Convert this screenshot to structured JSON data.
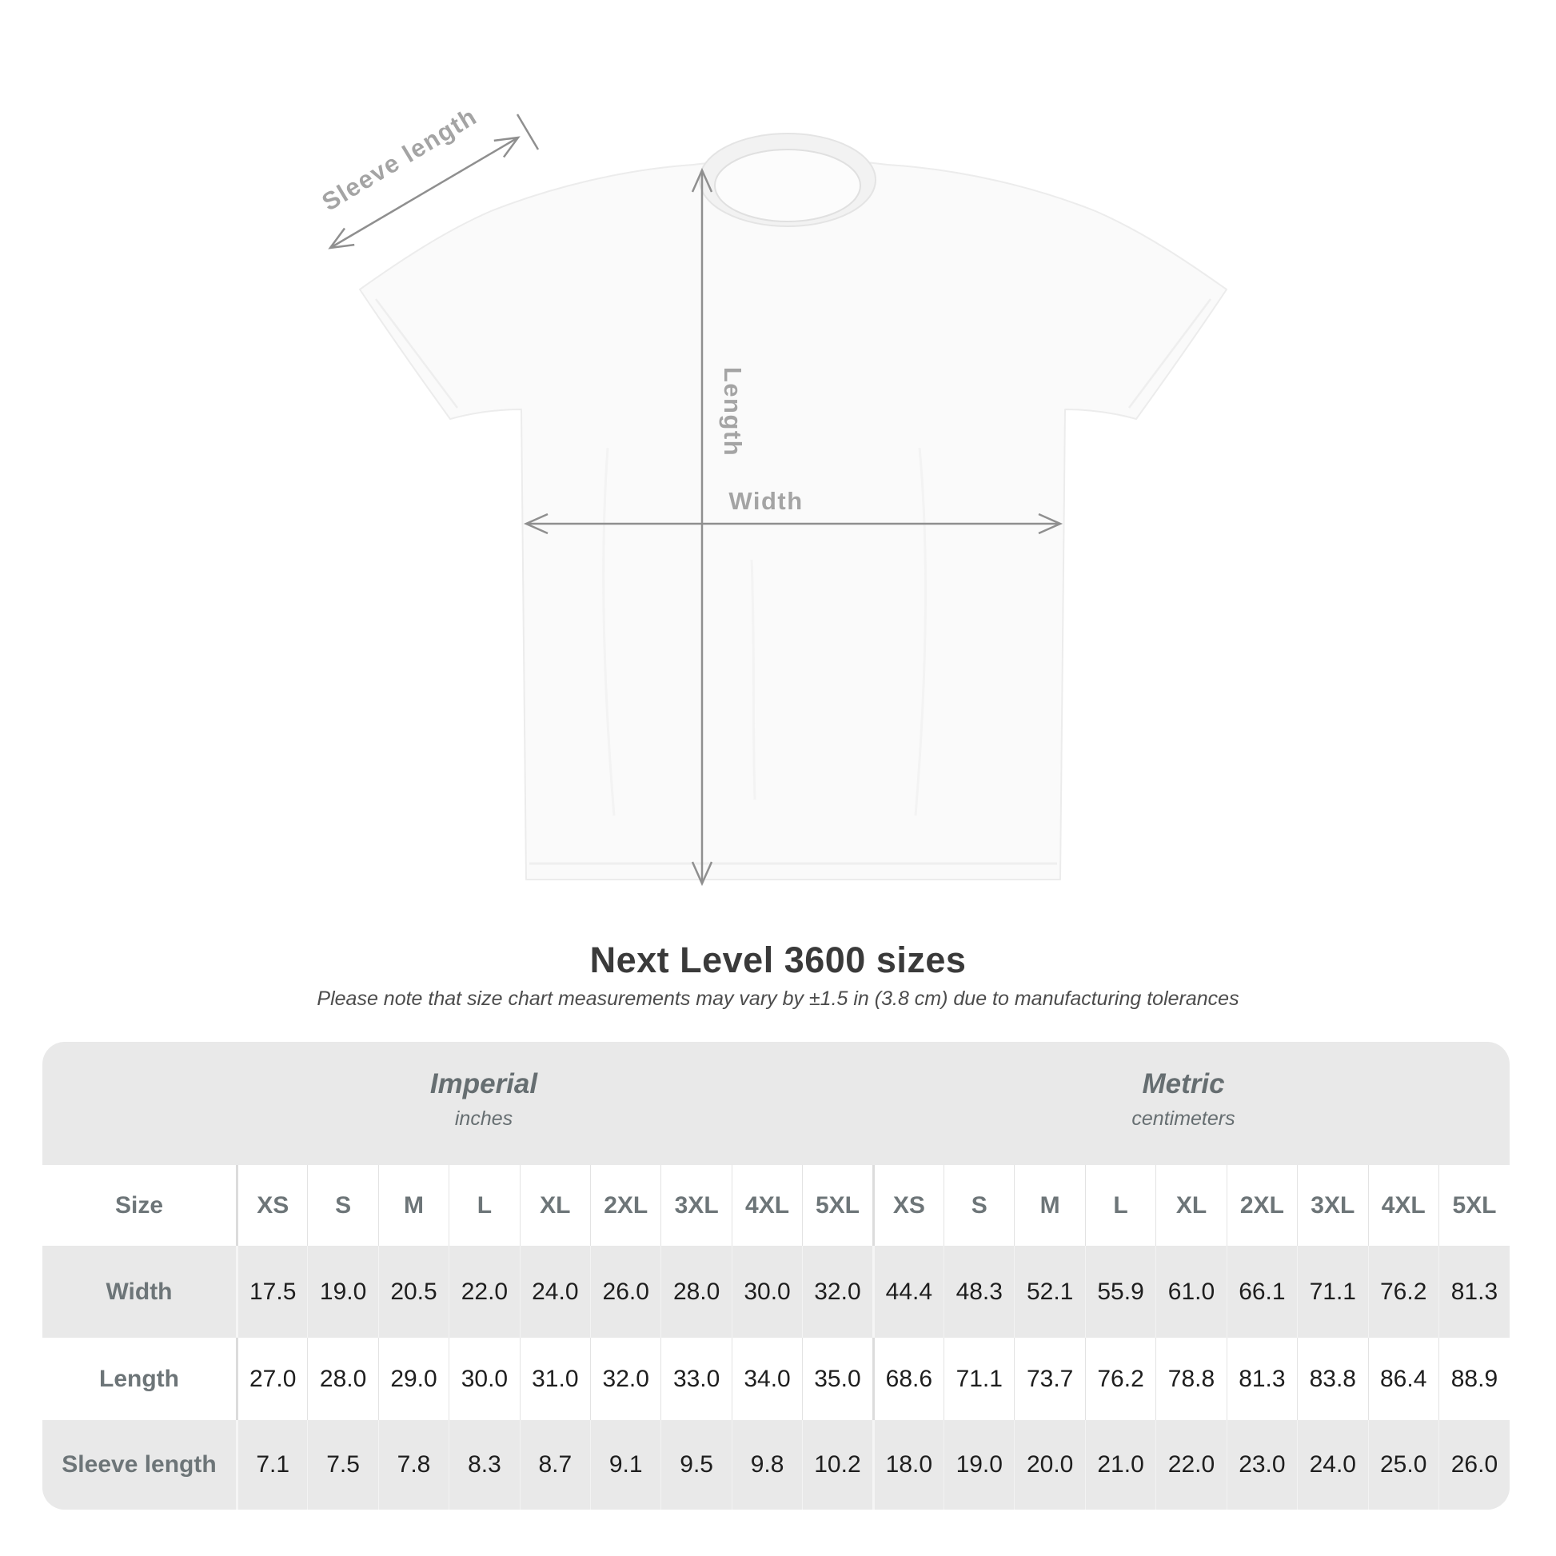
{
  "heading": {
    "note": "Please note that size chart measurements may vary by ±1.5 in (3.8 cm) due to manufacturing tolerances"
  },
  "diagram": {
    "labels": {
      "sleeve_length": "Sleeve length",
      "length": "Length",
      "width": "Width"
    }
  },
  "chart_data": {
    "type": "table",
    "title": "Next Level 3600 sizes",
    "corner_label": "Size",
    "sections": [
      {
        "name": "Imperial",
        "unit": "inches"
      },
      {
        "name": "Metric",
        "unit": "centimeters"
      }
    ],
    "sizes": [
      "XS",
      "S",
      "M",
      "L",
      "XL",
      "2XL",
      "3XL",
      "4XL",
      "5XL"
    ],
    "rows": [
      {
        "label": "Width",
        "imperial": [
          "17.5",
          "19.0",
          "20.5",
          "22.0",
          "24.0",
          "26.0",
          "28.0",
          "30.0",
          "32.0"
        ],
        "metric": [
          "44.4",
          "48.3",
          "52.1",
          "55.9",
          "61.0",
          "66.1",
          "71.1",
          "76.2",
          "81.3"
        ]
      },
      {
        "label": "Length",
        "imperial": [
          "27.0",
          "28.0",
          "29.0",
          "30.0",
          "31.0",
          "32.0",
          "33.0",
          "34.0",
          "35.0"
        ],
        "metric": [
          "68.6",
          "71.1",
          "73.7",
          "76.2",
          "78.8",
          "81.3",
          "83.8",
          "86.4",
          "88.9"
        ]
      },
      {
        "label": "Sleeve length",
        "imperial": [
          "7.1",
          "7.5",
          "7.8",
          "8.3",
          "8.7",
          "9.1",
          "9.5",
          "9.8",
          "10.2"
        ],
        "metric": [
          "18.0",
          "19.0",
          "20.0",
          "21.0",
          "22.0",
          "23.0",
          "24.0",
          "25.0",
          "26.0"
        ]
      }
    ]
  },
  "colors": {
    "panel_bg": "#e9e9e9",
    "header_text": "#6d7578",
    "value_text": "#1e1e1e",
    "title_text": "#3a3a3a",
    "arrow": "#8f8f8f",
    "diagram_label": "#a4a4a4",
    "shirt_fill": "#fafafa"
  }
}
